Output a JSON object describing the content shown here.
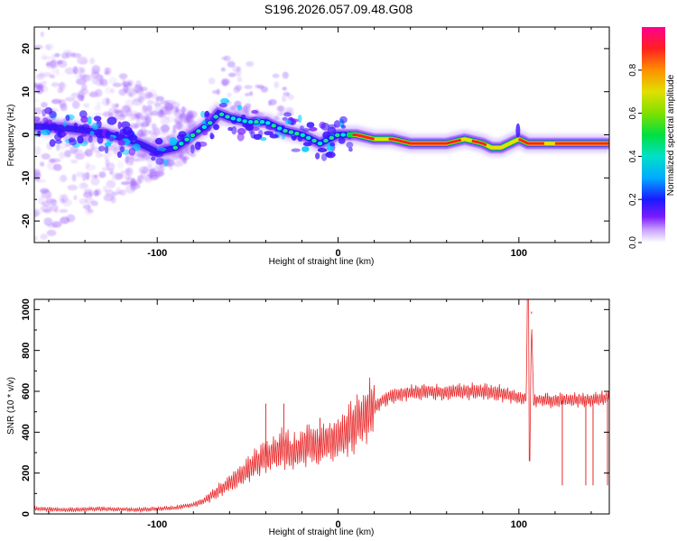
{
  "figure_title": "S196.2026.057.09.48.G08",
  "chart_data": [
    {
      "type": "heatmap",
      "title": "",
      "xlabel": "Height of straight line (km)",
      "ylabel": "Frequency (Hz)",
      "xlim": [
        -168,
        150
      ],
      "ylim": [
        -25,
        25
      ],
      "xticks": [
        -100,
        0,
        100
      ],
      "yticks": [
        -20,
        -10,
        0,
        10,
        20
      ],
      "colorbar": {
        "label": "Normalized spectral amplitude",
        "range": [
          0,
          1
        ],
        "ticks": [
          0.0,
          0.2,
          0.4,
          0.6,
          0.8
        ]
      },
      "ridge": {
        "x": [
          -168,
          -150,
          -130,
          -110,
          -100,
          -90,
          -80,
          -70,
          -66,
          -60,
          -50,
          -40,
          -30,
          -20,
          -15,
          -10,
          -5,
          0,
          10,
          20,
          30,
          40,
          50,
          60,
          70,
          80,
          85,
          90,
          95,
          100,
          105,
          110,
          120,
          130,
          140,
          150
        ],
        "freq": [
          2,
          1.5,
          0.5,
          -2,
          -4,
          -3,
          0,
          3,
          5,
          4,
          3,
          3,
          1,
          0,
          -1,
          -2,
          -1,
          0,
          0,
          -1,
          -1,
          -2,
          -2,
          -2,
          -1,
          -2,
          -3,
          -3,
          -2,
          -1,
          -2,
          -2,
          -2,
          -2,
          -2,
          -2
        ]
      }
    },
    {
      "type": "line",
      "title": "",
      "xlabel": "Height of straight line (km)",
      "ylabel": "SNR (10 * v/v)",
      "xlim": [
        -168,
        150
      ],
      "ylim": [
        0,
        1050
      ],
      "xticks": [
        -100,
        0,
        100
      ],
      "yticks": [
        0,
        200,
        400,
        600,
        800,
        1000
      ],
      "series": [
        {
          "name": "SNR",
          "color": "#e8282a",
          "x": [
            -168,
            -150,
            -130,
            -110,
            -100,
            -90,
            -80,
            -75,
            -70,
            -65,
            -60,
            -55,
            -50,
            -45,
            -40,
            -35,
            -30,
            -25,
            -20,
            -15,
            -10,
            -5,
            0,
            5,
            10,
            15,
            20,
            25,
            30,
            40,
            50,
            60,
            70,
            80,
            90,
            100,
            104,
            105,
            106,
            107,
            108,
            110,
            120,
            130,
            140,
            150
          ],
          "values": [
            25,
            20,
            25,
            20,
            25,
            30,
            45,
            60,
            90,
            120,
            150,
            180,
            210,
            250,
            280,
            300,
            330,
            300,
            330,
            340,
            330,
            360,
            370,
            400,
            440,
            480,
            520,
            560,
            580,
            595,
            600,
            595,
            600,
            600,
            590,
            570,
            570,
            1050,
            270,
            980,
            550,
            560,
            555,
            560,
            555,
            570
          ]
        }
      ],
      "spikes": [
        {
          "x": -40,
          "value": 540
        },
        {
          "x": -30,
          "value": 540
        },
        {
          "x": -10,
          "value": 470
        },
        {
          "x": 105,
          "value": 1050
        },
        {
          "x": 107,
          "value": 990
        },
        {
          "x": 124,
          "value": 140
        },
        {
          "x": 137,
          "value": 140
        },
        {
          "x": 141,
          "value": 140
        },
        {
          "x": 149,
          "value": 140
        }
      ]
    }
  ]
}
